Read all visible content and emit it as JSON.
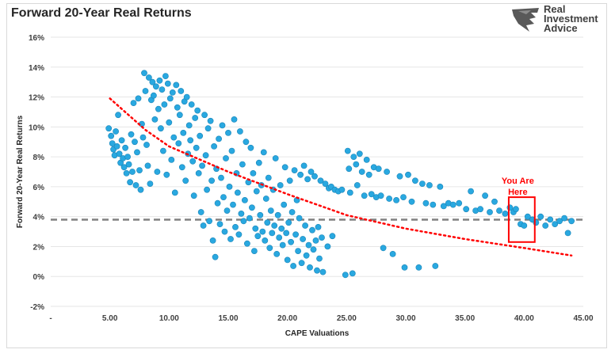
{
  "logo": {
    "line1": "Real",
    "line2": "Investment",
    "line3": "Advice"
  },
  "chart_data": {
    "type": "scatter",
    "title": "Forward 20-Year Real Returns",
    "xlabel": "CAPE Valuations",
    "ylabel": "Forward 20-Year Real Returns",
    "xlim": [
      0,
      45
    ],
    "ylim": [
      -2,
      16
    ],
    "x_ticks": [
      "-",
      "5.00",
      "10.00",
      "15.00",
      "20.00",
      "25.00",
      "30.00",
      "35.00",
      "40.00",
      "45.00"
    ],
    "y_ticks": [
      "-2%",
      "0%",
      "2%",
      "4%",
      "6%",
      "8%",
      "10%",
      "12%",
      "14%",
      "16%"
    ],
    "mean_line": {
      "y": 3.8,
      "style": "dashed",
      "color": "#808080"
    },
    "trendline": {
      "style": "dotted",
      "color": "#ff0000",
      "points": [
        [
          5,
          11.9
        ],
        [
          8,
          9.8
        ],
        [
          10,
          8.7
        ],
        [
          15,
          7.0
        ],
        [
          20,
          5.5
        ],
        [
          25,
          4.1
        ],
        [
          30,
          3.2
        ],
        [
          35,
          2.5
        ],
        [
          40,
          1.9
        ],
        [
          44,
          1.4
        ]
      ]
    },
    "annotation": {
      "text_line1": "You Are",
      "text_line2": "Here",
      "x_range": [
        38.7,
        40.9
      ],
      "y_range": [
        2.3,
        5.3
      ],
      "color": "#ff0000"
    },
    "marker_color": "#29a8e0",
    "points": [
      [
        4.9,
        9.9
      ],
      [
        5.1,
        9.4
      ],
      [
        5.2,
        8.9
      ],
      [
        5.3,
        8.5
      ],
      [
        5.4,
        8.1
      ],
      [
        5.5,
        9.7
      ],
      [
        5.6,
        8.7
      ],
      [
        5.7,
        10.8
      ],
      [
        5.8,
        8.2
      ],
      [
        5.9,
        7.6
      ],
      [
        6.0,
        9.1
      ],
      [
        6.1,
        7.9
      ],
      [
        6.2,
        7.3
      ],
      [
        6.3,
        8.6
      ],
      [
        6.4,
        6.9
      ],
      [
        6.5,
        8.0
      ],
      [
        6.6,
        7.5
      ],
      [
        6.7,
        6.3
      ],
      [
        6.8,
        9.5
      ],
      [
        6.9,
        7.0
      ],
      [
        7.0,
        11.6
      ],
      [
        7.1,
        9.0
      ],
      [
        7.2,
        6.1
      ],
      [
        7.3,
        8.3
      ],
      [
        7.4,
        11.9
      ],
      [
        7.5,
        7.1
      ],
      [
        7.6,
        5.8
      ],
      [
        7.7,
        10.2
      ],
      [
        7.8,
        9.3
      ],
      [
        7.9,
        13.6
      ],
      [
        8.0,
        12.4
      ],
      [
        8.1,
        8.8
      ],
      [
        8.2,
        7.4
      ],
      [
        8.3,
        13.3
      ],
      [
        8.4,
        6.2
      ],
      [
        8.5,
        11.8
      ],
      [
        8.6,
        13.0
      ],
      [
        8.7,
        12.1
      ],
      [
        8.8,
        10.5
      ],
      [
        8.9,
        12.7
      ],
      [
        9.0,
        7.0
      ],
      [
        9.1,
        11.2
      ],
      [
        9.2,
        13.1
      ],
      [
        9.3,
        9.9
      ],
      [
        9.4,
        12.5
      ],
      [
        9.5,
        8.4
      ],
      [
        9.6,
        11.5
      ],
      [
        9.7,
        13.4
      ],
      [
        9.8,
        6.8
      ],
      [
        9.9,
        12.9
      ],
      [
        10.0,
        10.3
      ],
      [
        10.1,
        11.9
      ],
      [
        10.2,
        7.8
      ],
      [
        10.3,
        12.3
      ],
      [
        10.4,
        9.3
      ],
      [
        10.5,
        5.6
      ],
      [
        10.6,
        12.8
      ],
      [
        10.7,
        11.3
      ],
      [
        10.8,
        8.9
      ],
      [
        10.9,
        10.8
      ],
      [
        11.0,
        12.4
      ],
      [
        11.1,
        7.3
      ],
      [
        11.2,
        9.6
      ],
      [
        11.3,
        11.7
      ],
      [
        11.4,
        6.4
      ],
      [
        11.5,
        12.0
      ],
      [
        11.6,
        8.2
      ],
      [
        11.7,
        10.1
      ],
      [
        11.8,
        9.1
      ],
      [
        11.9,
        11.5
      ],
      [
        12.0,
        7.7
      ],
      [
        12.1,
        5.4
      ],
      [
        12.2,
        10.6
      ],
      [
        12.3,
        8.6
      ],
      [
        12.4,
        11.1
      ],
      [
        12.5,
        6.9
      ],
      [
        12.6,
        9.4
      ],
      [
        12.7,
        4.3
      ],
      [
        12.8,
        7.4
      ],
      [
        12.9,
        3.4
      ],
      [
        13.0,
        10.8
      ],
      [
        13.1,
        8.1
      ],
      [
        13.2,
        5.8
      ],
      [
        13.3,
        9.9
      ],
      [
        13.4,
        3.7
      ],
      [
        13.5,
        10.4
      ],
      [
        13.6,
        6.4
      ],
      [
        13.7,
        2.4
      ],
      [
        13.8,
        8.7
      ],
      [
        13.9,
        1.3
      ],
      [
        14.0,
        7.2
      ],
      [
        14.1,
        4.9
      ],
      [
        14.2,
        9.2
      ],
      [
        14.3,
        3.5
      ],
      [
        14.4,
        6.6
      ],
      [
        14.5,
        10.1
      ],
      [
        14.6,
        5.3
      ],
      [
        14.7,
        3.0
      ],
      [
        14.8,
        7.9
      ],
      [
        14.9,
        4.4
      ],
      [
        15.0,
        9.6
      ],
      [
        15.1,
        6.0
      ],
      [
        15.2,
        2.5
      ],
      [
        15.3,
        8.4
      ],
      [
        15.4,
        4.8
      ],
      [
        15.5,
        10.5
      ],
      [
        15.6,
        3.3
      ],
      [
        15.7,
        6.9
      ],
      [
        15.8,
        5.6
      ],
      [
        15.9,
        2.8
      ],
      [
        16.0,
        9.7
      ],
      [
        16.1,
        4.2
      ],
      [
        16.2,
        7.5
      ],
      [
        16.3,
        3.7
      ],
      [
        16.4,
        5.1
      ],
      [
        16.5,
        9.0
      ],
      [
        16.6,
        2.2
      ],
      [
        16.7,
        6.3
      ],
      [
        16.8,
        3.9
      ],
      [
        16.9,
        8.6
      ],
      [
        17.0,
        4.6
      ],
      [
        17.1,
        6.9
      ],
      [
        17.2,
        1.7
      ],
      [
        17.3,
        3.2
      ],
      [
        17.4,
        5.7
      ],
      [
        17.5,
        2.7
      ],
      [
        17.6,
        7.6
      ],
      [
        17.7,
        4.1
      ],
      [
        17.8,
        6.1
      ],
      [
        17.9,
        3.0
      ],
      [
        18.0,
        8.3
      ],
      [
        18.1,
        2.4
      ],
      [
        18.2,
        5.2
      ],
      [
        18.3,
        3.6
      ],
      [
        18.4,
        6.6
      ],
      [
        18.5,
        1.9
      ],
      [
        18.6,
        4.4
      ],
      [
        18.7,
        2.9
      ],
      [
        18.8,
        5.8
      ],
      [
        18.9,
        3.4
      ],
      [
        19.0,
        7.9
      ],
      [
        19.1,
        1.5
      ],
      [
        19.2,
        4.1
      ],
      [
        19.3,
        2.6
      ],
      [
        19.4,
        6.1
      ],
      [
        19.5,
        3.2
      ],
      [
        19.6,
        2.1
      ],
      [
        19.7,
        4.8
      ],
      [
        19.8,
        7.3
      ],
      [
        19.9,
        2.9
      ],
      [
        20.0,
        1.1
      ],
      [
        20.1,
        3.6
      ],
      [
        20.2,
        6.4
      ],
      [
        20.3,
        2.3
      ],
      [
        20.4,
        4.3
      ],
      [
        20.5,
        0.7
      ],
      [
        20.6,
        7.1
      ],
      [
        20.7,
        2.8
      ],
      [
        20.8,
        5.1
      ],
      [
        20.9,
        1.7
      ],
      [
        21.0,
        3.9
      ],
      [
        21.1,
        6.8
      ],
      [
        21.2,
        0.9
      ],
      [
        21.3,
        2.5
      ],
      [
        21.4,
        7.4
      ],
      [
        21.5,
        3.4
      ],
      [
        21.6,
        1.4
      ],
      [
        21.7,
        6.5
      ],
      [
        21.8,
        2.1
      ],
      [
        21.9,
        0.6
      ],
      [
        22.0,
        7.0
      ],
      [
        22.1,
        3.1
      ],
      [
        22.2,
        1.8
      ],
      [
        22.3,
        6.7
      ],
      [
        22.4,
        2.4
      ],
      [
        22.5,
        0.4
      ],
      [
        22.6,
        3.3
      ],
      [
        22.7,
        1.2
      ],
      [
        22.8,
        6.4
      ],
      [
        22.9,
        2.6
      ],
      [
        23.0,
        0.3
      ],
      [
        23.2,
        6.2
      ],
      [
        23.4,
        2.0
      ],
      [
        23.5,
        5.9
      ],
      [
        23.7,
        6.0
      ],
      [
        23.8,
        2.7
      ],
      [
        24.0,
        5.8
      ],
      [
        24.3,
        5.7
      ],
      [
        24.6,
        5.8
      ],
      [
        24.9,
        0.1
      ],
      [
        25.1,
        8.4
      ],
      [
        25.2,
        7.2
      ],
      [
        25.3,
        5.6
      ],
      [
        25.5,
        0.2
      ],
      [
        25.6,
        8.0
      ],
      [
        25.8,
        7.5
      ],
      [
        25.9,
        6.1
      ],
      [
        26.1,
        8.2
      ],
      [
        26.3,
        7.0
      ],
      [
        26.5,
        5.4
      ],
      [
        26.7,
        7.8
      ],
      [
        26.9,
        6.8
      ],
      [
        27.1,
        5.5
      ],
      [
        27.3,
        7.3
      ],
      [
        27.5,
        5.3
      ],
      [
        27.7,
        7.2
      ],
      [
        27.9,
        5.4
      ],
      [
        28.1,
        1.9
      ],
      [
        28.4,
        7.0
      ],
      [
        28.6,
        5.2
      ],
      [
        28.9,
        1.5
      ],
      [
        29.2,
        5.1
      ],
      [
        29.5,
        6.7
      ],
      [
        29.8,
        5.3
      ],
      [
        29.9,
        0.6
      ],
      [
        30.2,
        6.8
      ],
      [
        30.5,
        5.0
      ],
      [
        30.8,
        6.4
      ],
      [
        31.1,
        0.6
      ],
      [
        31.4,
        6.2
      ],
      [
        31.7,
        4.9
      ],
      [
        32.0,
        6.1
      ],
      [
        32.3,
        4.8
      ],
      [
        32.5,
        0.7
      ],
      [
        32.9,
        6.0
      ],
      [
        33.2,
        4.7
      ],
      [
        33.6,
        4.9
      ],
      [
        34.0,
        4.8
      ],
      [
        34.5,
        4.9
      ],
      [
        35.1,
        4.5
      ],
      [
        35.5,
        5.7
      ],
      [
        35.9,
        4.4
      ],
      [
        36.3,
        4.5
      ],
      [
        36.7,
        5.4
      ],
      [
        37.1,
        4.3
      ],
      [
        37.5,
        5.0
      ],
      [
        37.9,
        4.4
      ],
      [
        38.4,
        4.2
      ],
      [
        38.8,
        4.6
      ],
      [
        39.1,
        4.3
      ],
      [
        39.3,
        4.5
      ],
      [
        39.7,
        3.5
      ],
      [
        40.0,
        3.4
      ],
      [
        40.3,
        4.0
      ],
      [
        40.7,
        3.8
      ],
      [
        41.0,
        3.6
      ],
      [
        41.4,
        4.0
      ],
      [
        41.8,
        3.4
      ],
      [
        42.2,
        3.8
      ],
      [
        42.6,
        3.5
      ],
      [
        43.0,
        3.7
      ],
      [
        43.4,
        3.9
      ],
      [
        43.7,
        2.9
      ],
      [
        44.0,
        3.7
      ]
    ]
  }
}
